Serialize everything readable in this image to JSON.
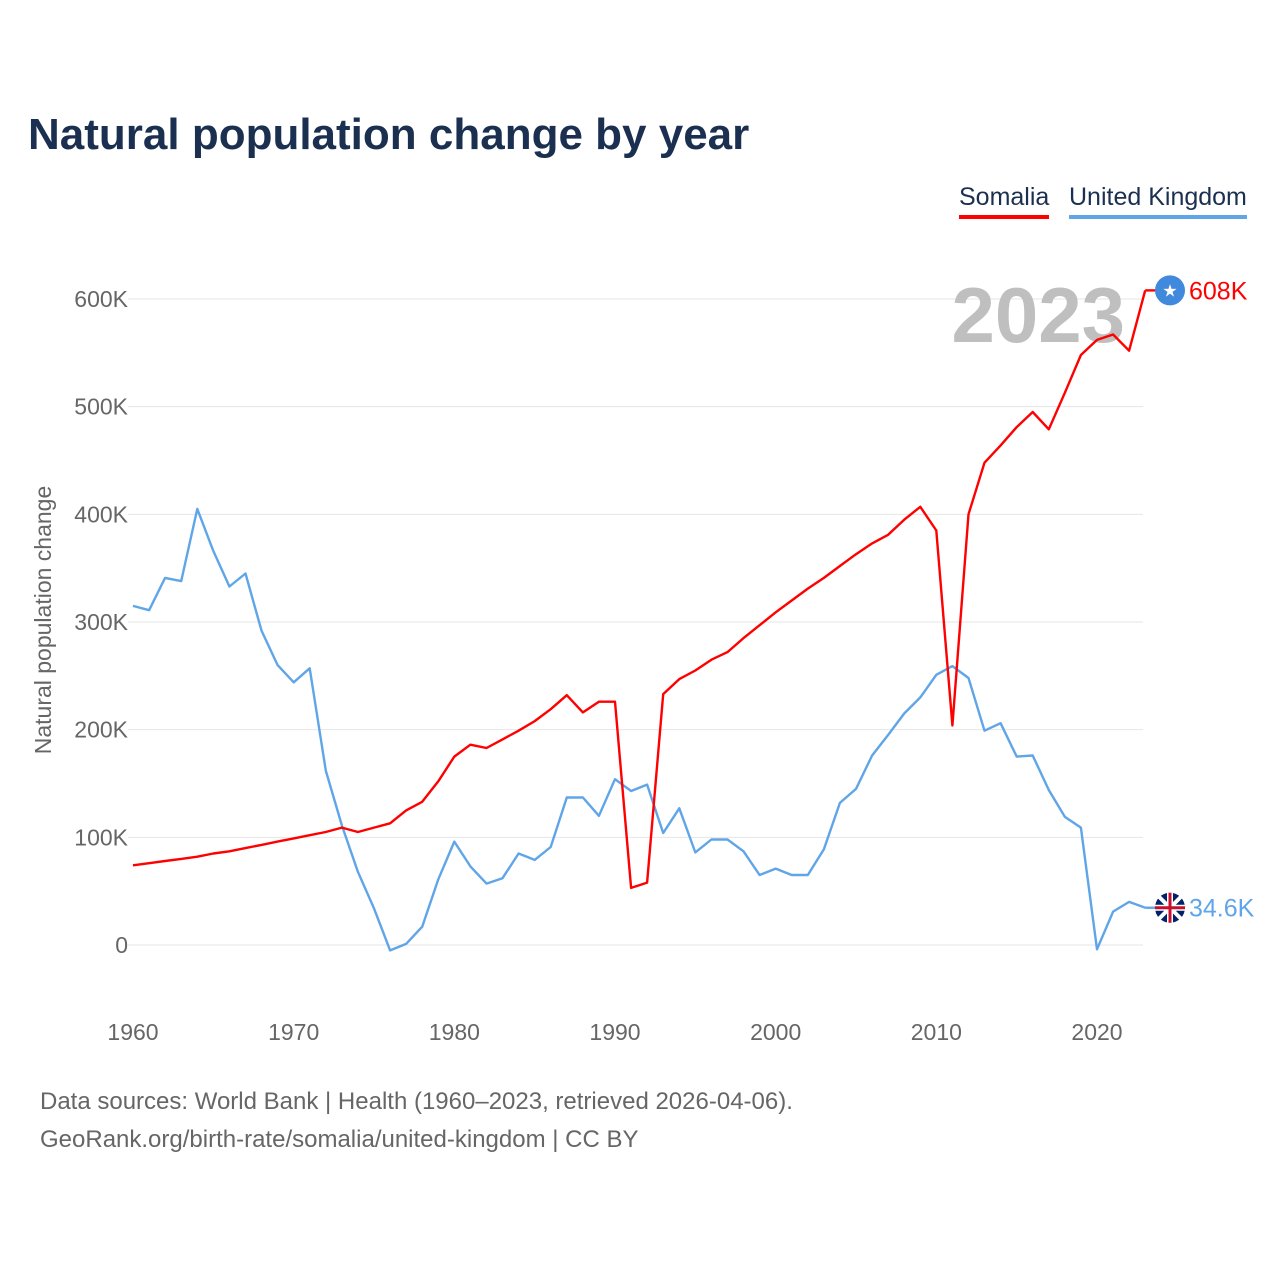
{
  "chart_data": {
    "type": "line",
    "title": "Natural population change by year",
    "ylabel": "Natural population change",
    "xlabel": "",
    "xlim": [
      1960,
      2023
    ],
    "ylim": [
      -60000,
      640000
    ],
    "yticks": [
      0,
      100000,
      200000,
      300000,
      400000,
      500000,
      600000
    ],
    "ytick_labels": [
      "0",
      "100K",
      "200K",
      "300K",
      "400K",
      "500K",
      "600K"
    ],
    "xticks": [
      1960,
      1970,
      1980,
      1990,
      2000,
      2010,
      2020
    ],
    "xtick_labels": [
      "1960",
      "1970",
      "1980",
      "1990",
      "2000",
      "2010",
      "2020"
    ],
    "grid": true,
    "legend_position": "top-right",
    "year_watermark": "2023",
    "x": [
      1960,
      1961,
      1962,
      1963,
      1964,
      1965,
      1966,
      1967,
      1968,
      1969,
      1970,
      1971,
      1972,
      1973,
      1974,
      1975,
      1976,
      1977,
      1978,
      1979,
      1980,
      1981,
      1982,
      1983,
      1984,
      1985,
      1986,
      1987,
      1988,
      1989,
      1990,
      1991,
      1992,
      1993,
      1994,
      1995,
      1996,
      1997,
      1998,
      1999,
      2000,
      2001,
      2002,
      2003,
      2004,
      2005,
      2006,
      2007,
      2008,
      2009,
      2010,
      2011,
      2012,
      2013,
      2014,
      2015,
      2016,
      2017,
      2018,
      2019,
      2020,
      2021,
      2022,
      2023
    ],
    "series": [
      {
        "name": "Somalia",
        "color": "#ff0000",
        "end_label": "608K",
        "flag_icon": "somalia-flag-icon",
        "values": [
          74000,
          76000,
          78000,
          80000,
          82000,
          85000,
          87000,
          90000,
          93000,
          96000,
          99000,
          102000,
          105000,
          109000,
          105000,
          109000,
          113000,
          125000,
          133000,
          152000,
          175000,
          186000,
          183000,
          191000,
          199000,
          208000,
          219000,
          232000,
          216000,
          226000,
          226000,
          53000,
          58000,
          233000,
          247000,
          255000,
          265000,
          272000,
          285000,
          297000,
          309000,
          320000,
          331000,
          341000,
          352000,
          363000,
          373000,
          381000,
          395000,
          407000,
          385000,
          204000,
          400000,
          448000,
          464000,
          481000,
          495000,
          479000,
          513000,
          548000,
          562000,
          567000,
          552000,
          608000
        ]
      },
      {
        "name": "United Kingdom",
        "color": "#5fa5e8",
        "end_label": "34.6K",
        "flag_icon": "uk-flag-icon",
        "values": [
          315000,
          311000,
          341000,
          338000,
          405000,
          366000,
          333000,
          345000,
          292000,
          260000,
          244000,
          257000,
          162000,
          111000,
          68000,
          34000,
          -5000,
          1000,
          17000,
          61000,
          96000,
          73000,
          57000,
          62000,
          85000,
          79000,
          91000,
          137000,
          137000,
          120000,
          154000,
          143000,
          149000,
          104000,
          127000,
          86000,
          98000,
          98000,
          87000,
          65000,
          71000,
          65000,
          65000,
          89000,
          132000,
          145000,
          176000,
          195000,
          215000,
          230000,
          251000,
          259000,
          248000,
          199000,
          206000,
          175000,
          176000,
          144000,
          119000,
          109000,
          -4000,
          31000,
          40000,
          34600
        ]
      }
    ]
  },
  "footer": {
    "line1": "Data sources: World Bank | Health (1960–2023, retrieved 2026-04-06).",
    "line2": "GeoRank.org/birth-rate/somalia/united-kingdom | CC BY"
  }
}
